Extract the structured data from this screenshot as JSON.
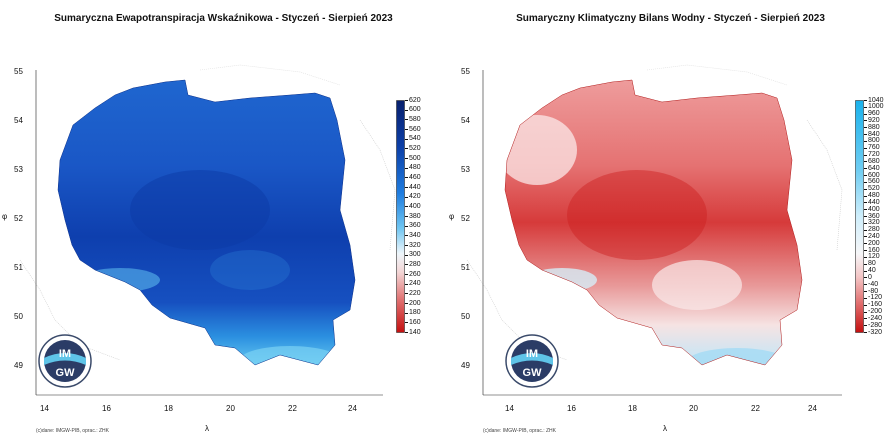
{
  "panels": [
    {
      "title": "Sumaryczna Ewapotranspiracja Wskaźnikowa - Styczeń - Sierpień 2023",
      "colorbar_labels": [
        "620",
        "600",
        "580",
        "560",
        "540",
        "520",
        "500",
        "480",
        "460",
        "440",
        "420",
        "400",
        "380",
        "360",
        "340",
        "320",
        "300",
        "280",
        "260",
        "240",
        "220",
        "200",
        "180",
        "160",
        "140"
      ],
      "map_colors": {
        "main": "#1a57c6",
        "north": "#1f66cf",
        "center": "#0e3fae",
        "south": "#2b8fe0",
        "mountains": "#64c8f0"
      },
      "x_ticks": [
        "14",
        "16",
        "18",
        "20",
        "22",
        "24"
      ],
      "y_ticks": [
        "55",
        "54",
        "53",
        "52",
        "51",
        "50",
        "49"
      ],
      "x_axis_label": "λ",
      "y_axis_label": "φ",
      "credit": "(c)dane: IMGW-PIB, oprac.: ZHK",
      "logo": {
        "line1": "IM",
        "line2": "GW"
      }
    },
    {
      "title": "Sumaryczny Klimatyczny Bilans Wodny - Styczeń - Sierpień 2023",
      "colorbar_labels": [
        "1040",
        "1000",
        "960",
        "920",
        "880",
        "840",
        "800",
        "760",
        "720",
        "680",
        "640",
        "600",
        "560",
        "520",
        "480",
        "440",
        "400",
        "360",
        "320",
        "280",
        "240",
        "200",
        "160",
        "120",
        "80",
        "40",
        "0",
        "-40",
        "-80",
        "-120",
        "-160",
        "-200",
        "-240",
        "-280",
        "-320"
      ],
      "map_colors": {
        "main": "#ea8d8d",
        "north": "#f2b5b5",
        "center": "#d42f2f",
        "south": "#f6dede",
        "mountains": "#bfe6f8"
      },
      "x_ticks": [
        "14",
        "16",
        "18",
        "20",
        "22",
        "24"
      ],
      "y_ticks": [
        "55",
        "54",
        "53",
        "52",
        "51",
        "50",
        "49"
      ],
      "x_axis_label": "λ",
      "y_axis_label": "φ",
      "credit": "(c)dane: IMGW-PIB, oprac.: ZHK",
      "logo": {
        "line1": "IM",
        "line2": "GW"
      }
    }
  ]
}
